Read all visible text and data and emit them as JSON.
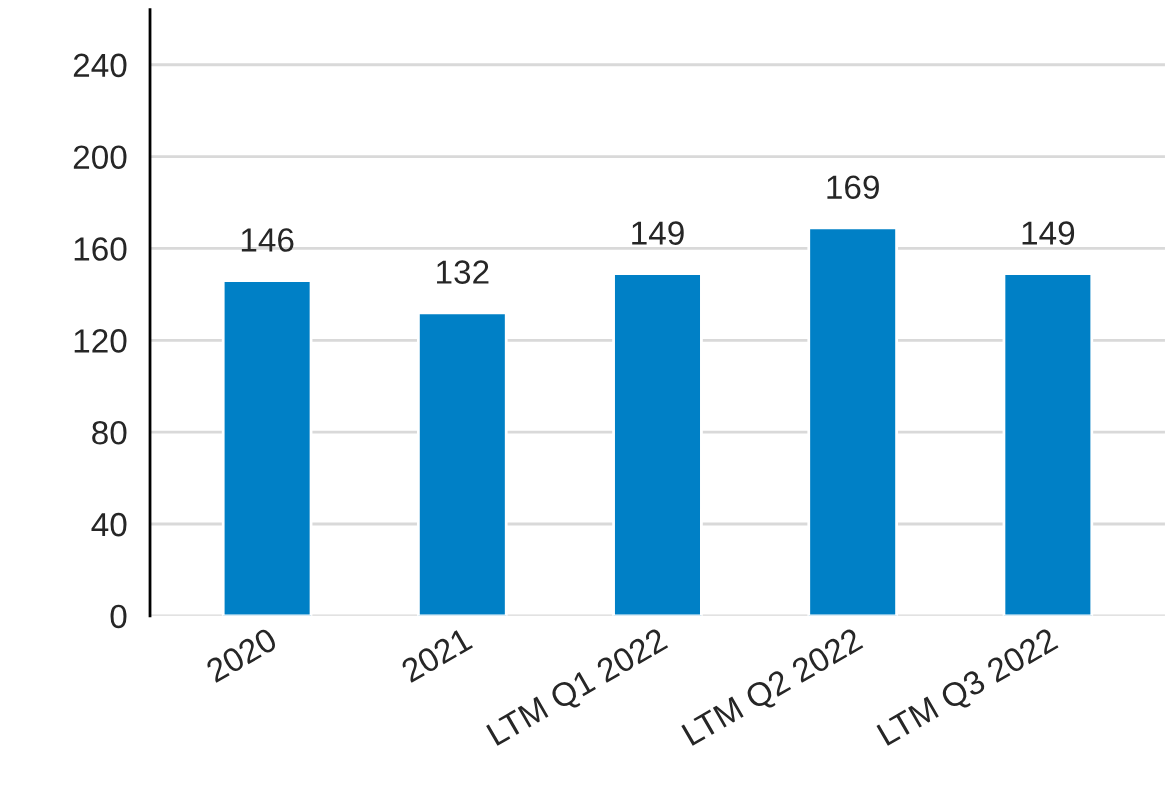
{
  "chart_data": {
    "type": "bar",
    "categories": [
      "2020",
      "2021",
      "LTM Q1 2022",
      "LTM Q2 2022",
      "LTM Q3 2022"
    ],
    "values": [
      146,
      132,
      149,
      169,
      149
    ],
    "color": "#0080c6",
    "ylim": [
      0,
      264
    ],
    "yticks": [
      0,
      40,
      80,
      120,
      160,
      200,
      240
    ],
    "grid": "y",
    "data_labels": true
  }
}
